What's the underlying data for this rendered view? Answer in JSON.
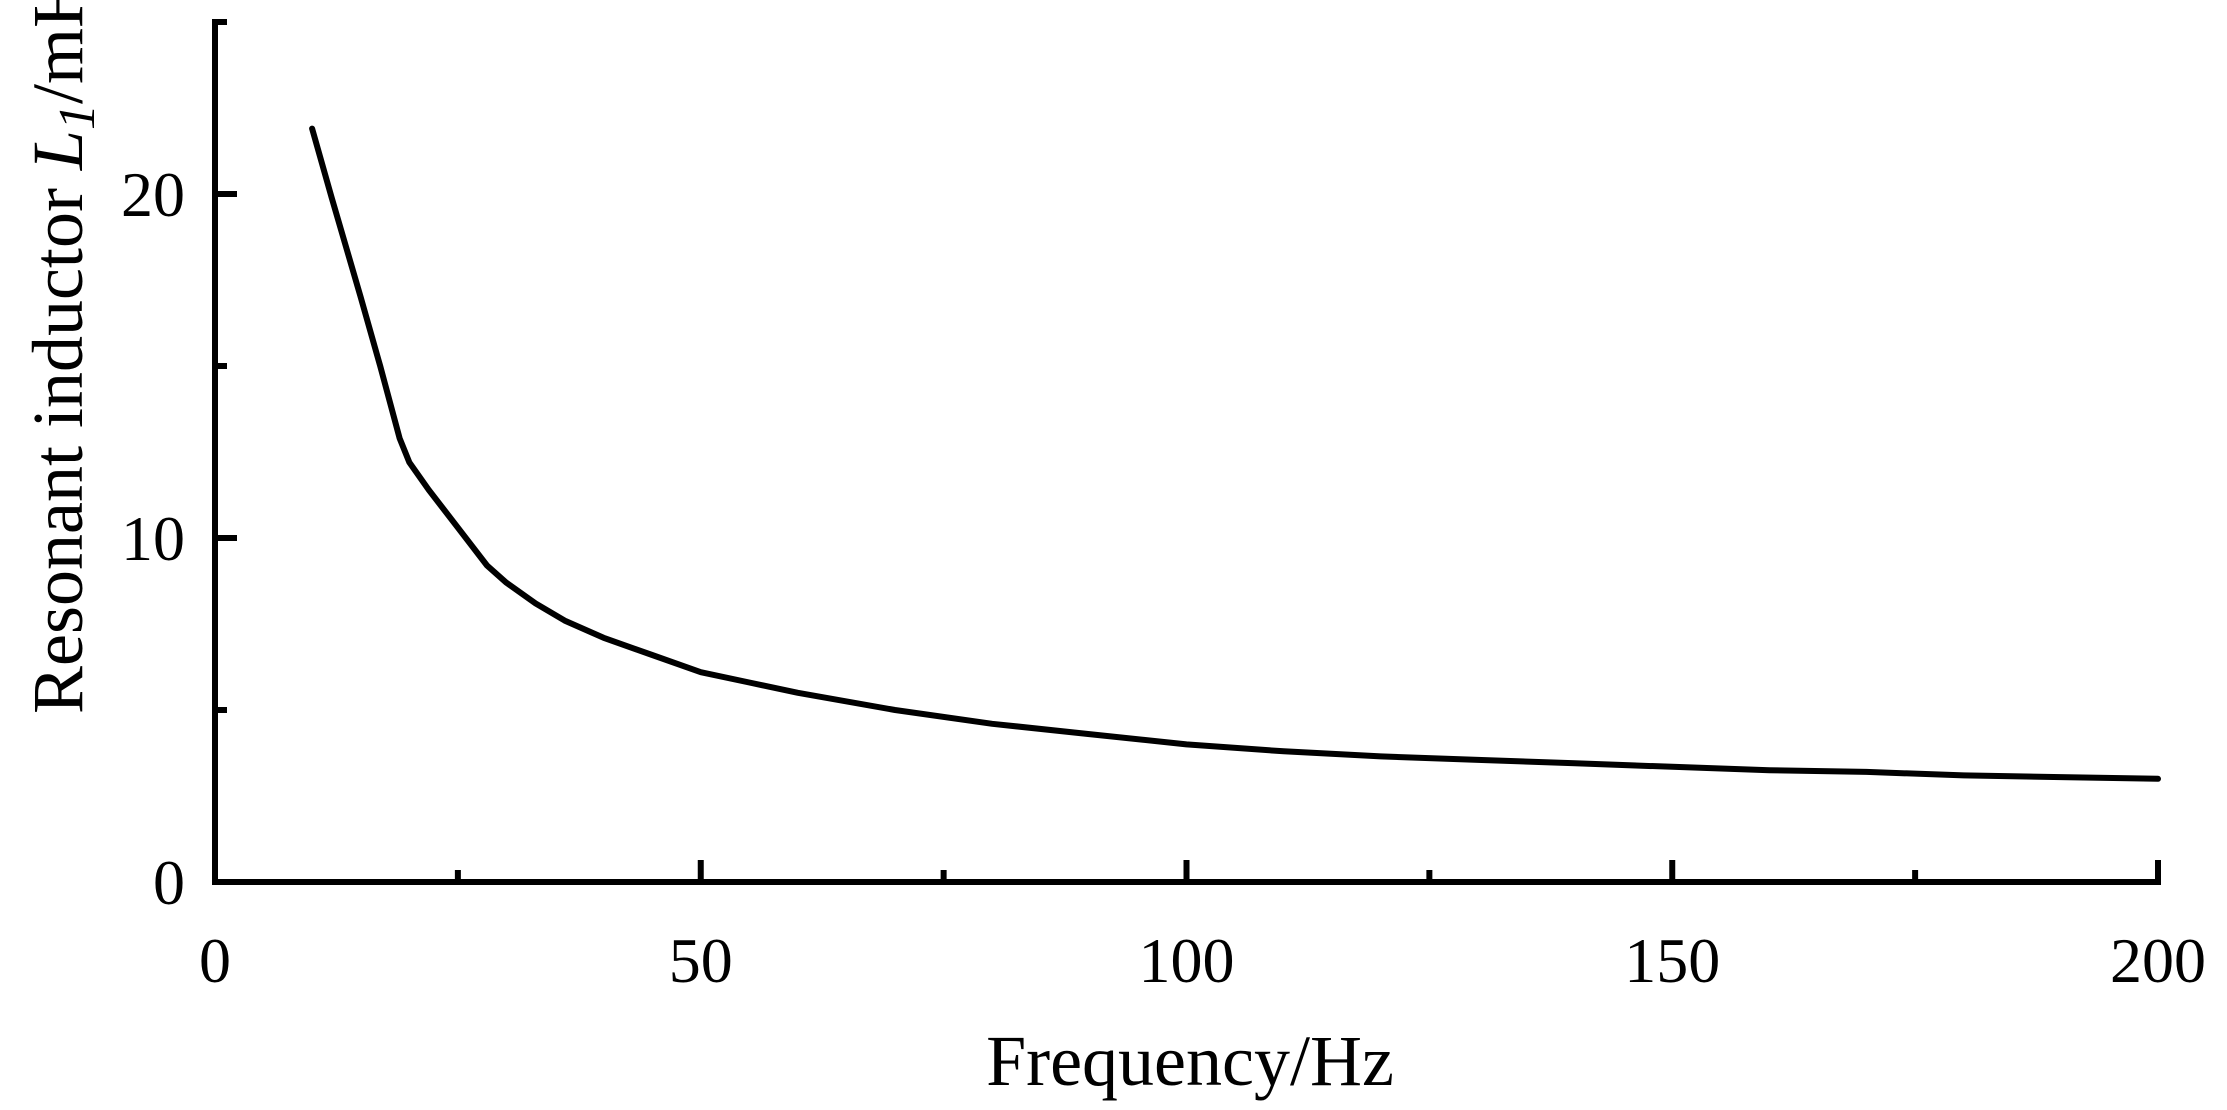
{
  "chart_data": {
    "type": "line",
    "title": "",
    "xlabel": "Frequency/Hz",
    "ylabel": {
      "prefix": "Resonant inductor ",
      "symbol": "L",
      "subscript": "1",
      "suffix": "/mH"
    },
    "xlim": [
      0,
      200
    ],
    "ylim": [
      0,
      25
    ],
    "x_ticks": [
      0,
      50,
      100,
      150,
      200
    ],
    "x_tick_labels": [
      "0",
      "50",
      "100",
      "150",
      "200"
    ],
    "x_minor_ticks": [
      25,
      75,
      125,
      175
    ],
    "y_ticks": [
      0,
      10,
      20
    ],
    "y_tick_labels": [
      "0",
      "10",
      "20"
    ],
    "y_minor_ticks": [
      5,
      15,
      25
    ],
    "grid": false,
    "series": [
      {
        "color": "#000000",
        "x": [
          10,
          12,
          15,
          17,
          19,
          20,
          22,
          25,
          28,
          30,
          33,
          36,
          40,
          45,
          50,
          55,
          60,
          70,
          80,
          90,
          100,
          110,
          120,
          130,
          140,
          150,
          160,
          170,
          180,
          190,
          200
        ],
        "y": [
          21.9,
          19.9,
          17.0,
          15.0,
          12.9,
          12.2,
          11.4,
          10.3,
          9.2,
          8.7,
          8.1,
          7.6,
          7.1,
          6.6,
          6.1,
          5.8,
          5.5,
          5.0,
          4.6,
          4.3,
          4.0,
          3.8,
          3.65,
          3.55,
          3.45,
          3.35,
          3.25,
          3.2,
          3.1,
          3.05,
          3.0
        ]
      }
    ]
  }
}
